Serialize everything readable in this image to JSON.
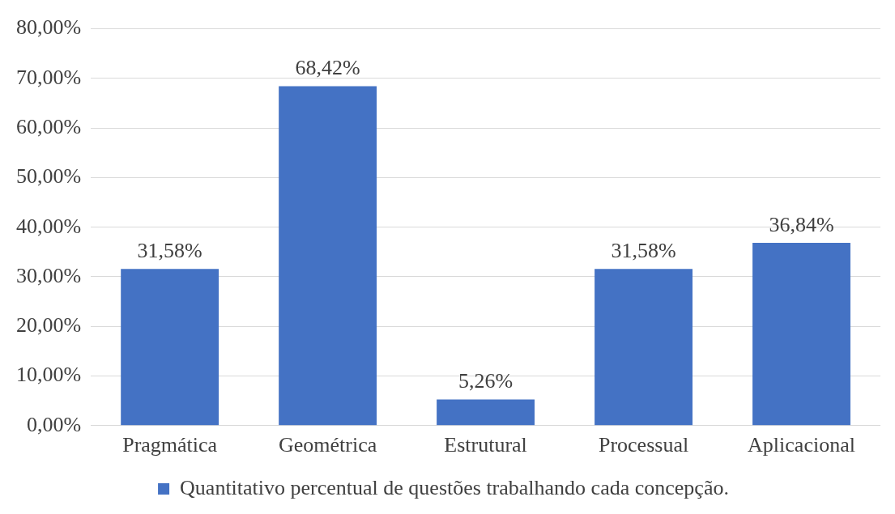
{
  "chart_data": {
    "type": "bar",
    "categories": [
      "Pragmática",
      "Geométrica",
      "Estrutural",
      "Processual",
      "Aplicacional"
    ],
    "series": [
      {
        "name": "Quantitativo percentual de questões trabalhando cada concepção.",
        "color": "#4472c4",
        "values": [
          31.58,
          68.42,
          5.26,
          31.58,
          36.84
        ],
        "value_labels": [
          "31,58%",
          "68,42%",
          "5,26%",
          "31,58%",
          "36,84%"
        ]
      }
    ],
    "ylim": [
      0,
      80
    ],
    "yticks": [
      {
        "value": 0,
        "label": "0,00%"
      },
      {
        "value": 10,
        "label": "10,00%"
      },
      {
        "value": 20,
        "label": "20,00%"
      },
      {
        "value": 30,
        "label": "30,00%"
      },
      {
        "value": 40,
        "label": "40,00%"
      },
      {
        "value": 50,
        "label": "50,00%"
      },
      {
        "value": 60,
        "label": "60,00%"
      },
      {
        "value": 70,
        "label": "70,00%"
      },
      {
        "value": 80,
        "label": "80,00%"
      }
    ],
    "grid": "y",
    "legend": "bottom"
  }
}
